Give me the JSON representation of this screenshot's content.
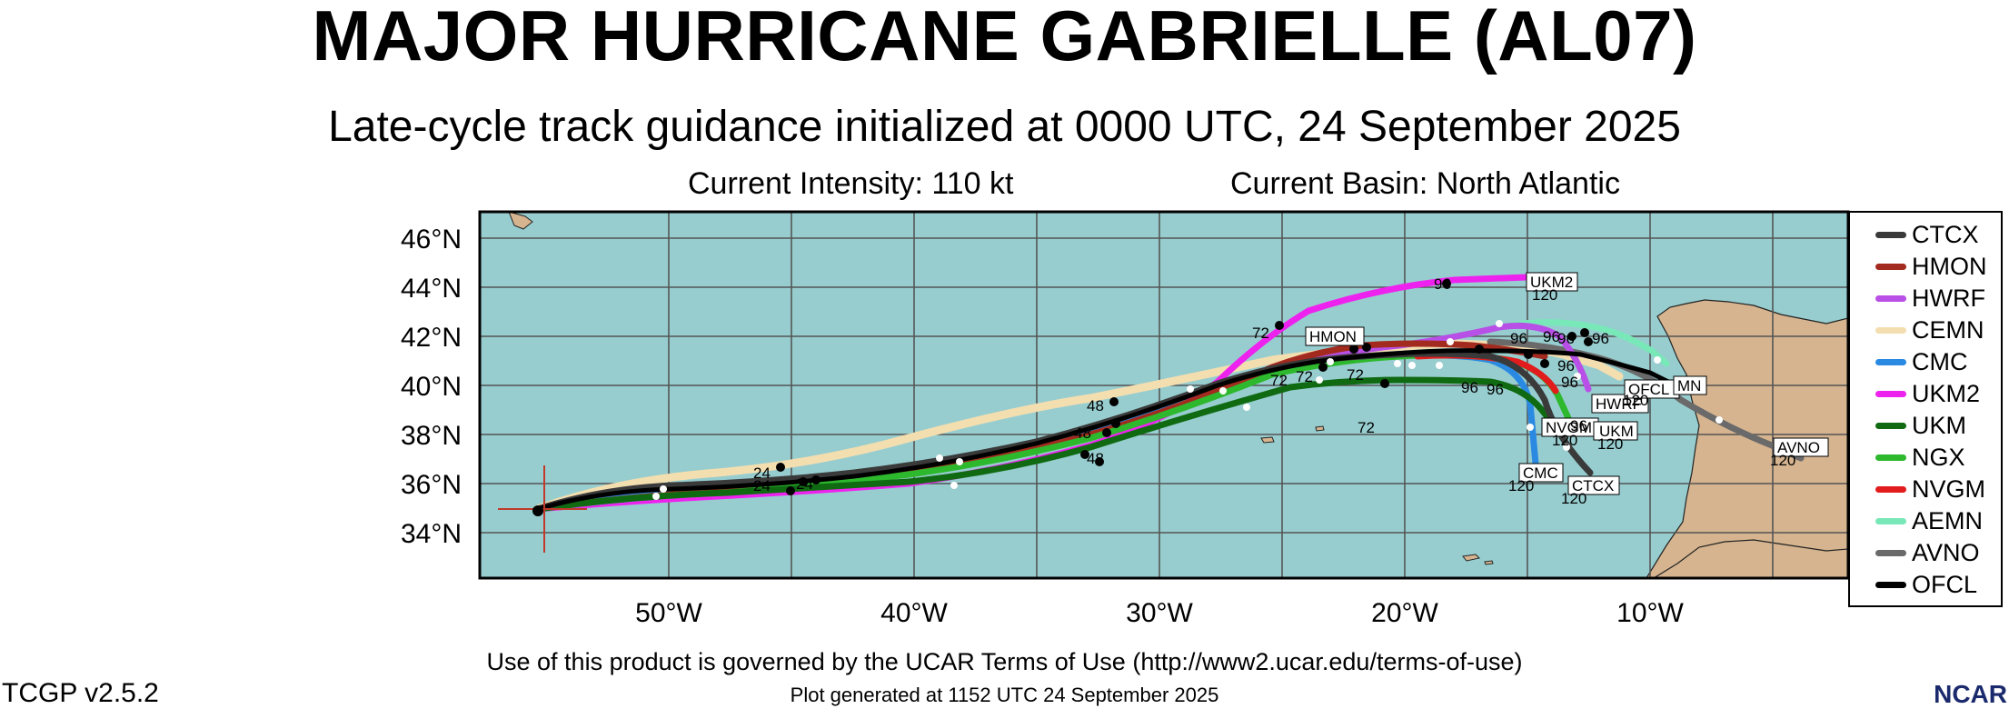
{
  "header": {
    "title": "MAJOR HURRICANE GABRIELLE (AL07)",
    "subtitle": "Late-cycle track guidance initialized at 0000 UTC, 24 September 2025",
    "intensity": "Current Intensity: 110 kt",
    "basin": "Current Basin: North Atlantic"
  },
  "map": {
    "ocean_color": "#97cdcf",
    "land_color": "#d5b48f",
    "grid_color": "#555555",
    "lat_labels": [
      "46°N",
      "44°N",
      "42°N",
      "40°N",
      "38°N",
      "36°N",
      "34°N"
    ],
    "lon_labels": [
      "50°W",
      "40°W",
      "30°W",
      "20°W",
      "10°W"
    ]
  },
  "legend": [
    {
      "name": "CTCX",
      "color": "#3a3a3a"
    },
    {
      "name": "HMON",
      "color": "#a32a1e"
    },
    {
      "name": "HWRF",
      "color": "#b84fe6"
    },
    {
      "name": "CEMN",
      "color": "#f3deb0"
    },
    {
      "name": "CMC",
      "color": "#2a8ae2"
    },
    {
      "name": "UKM2",
      "color": "#ee22ee"
    },
    {
      "name": "UKM",
      "color": "#0f6a12"
    },
    {
      "name": "NGX",
      "color": "#2db82d"
    },
    {
      "name": "NVGM",
      "color": "#e21c1c"
    },
    {
      "name": "AEMN",
      "color": "#79e8b9"
    },
    {
      "name": "AVNO",
      "color": "#6a6a6a"
    },
    {
      "name": "OFCL",
      "color": "#000000"
    }
  ],
  "track_labels": {
    "UKM2": "UKM2",
    "HMON": "HMON",
    "HWRF": "HWRF",
    "NVGM": "NVGM",
    "UKM": "UKM",
    "CMC": "CMC",
    "CTCX": "CTCX",
    "OFCL": "OFCL",
    "MN": "MN",
    "AVNO": "AVNO"
  },
  "hour_labels": {
    "h24": "24",
    "h48": "48",
    "h72": "72",
    "h96": "96",
    "h120": "120"
  },
  "footer": {
    "terms": "Use of this product is governed by the UCAR Terms of Use (http://www2.ucar.edu/terms-of-use)",
    "generated": "Plot generated at 1152 UTC   24 September 2025",
    "version": "TCGP v2.5.2",
    "logo": "NCAR"
  }
}
